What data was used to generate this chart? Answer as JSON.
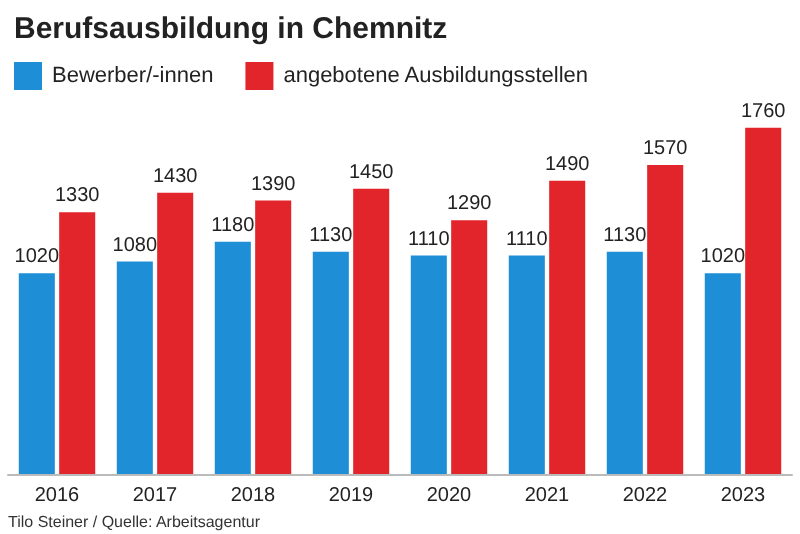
{
  "chart_data": {
    "type": "bar",
    "title": "Berufsausbildung in Chemnitz",
    "categories": [
      "2016",
      "2017",
      "2018",
      "2019",
      "2020",
      "2021",
      "2022",
      "2023"
    ],
    "series": [
      {
        "name": "Bewerber/-innen",
        "color": "#1e8fd6",
        "values": [
          1020,
          1080,
          1180,
          1130,
          1110,
          1110,
          1130,
          1020
        ]
      },
      {
        "name": "angebotene Ausbildungsstellen",
        "color": "#e1252b",
        "values": [
          1330,
          1430,
          1390,
          1450,
          1290,
          1490,
          1570,
          1760
        ]
      }
    ],
    "data_labels": true,
    "legend": "top left",
    "annotations": [
      "Tilo Steiner / Quelle: Arbeitsagentur"
    ]
  }
}
